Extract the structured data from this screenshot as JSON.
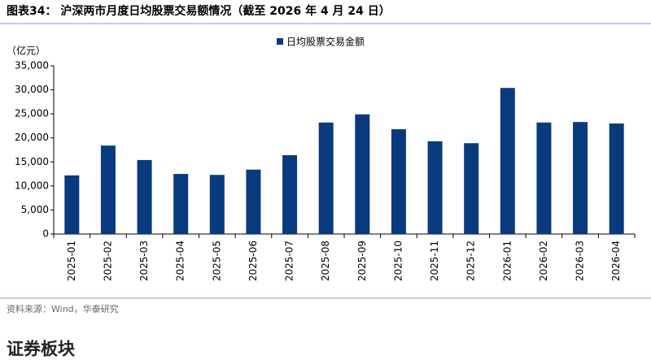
{
  "chart_data": {
    "type": "bar",
    "title": "图表34：  沪深两市月度日均股票交易额情况（截至 2026 年 4 月 24 日）",
    "y_label": "（亿元）",
    "categories": [
      "2025-01",
      "2025-02",
      "2025-03",
      "2025-04",
      "2025-05",
      "2025-06",
      "2025-07",
      "2025-08",
      "2025-09",
      "2025-10",
      "2025-11",
      "2025-12",
      "2026-01",
      "2026-02",
      "2026-03",
      "2026-04"
    ],
    "series": [
      {
        "name": "日均股票交易金额",
        "color": "#0a3a7e",
        "values": [
          12200,
          18400,
          15400,
          12500,
          12300,
          13400,
          16400,
          23200,
          24900,
          21800,
          19300,
          18900,
          30400,
          23200,
          23300,
          23000
        ]
      }
    ],
    "ylim": [
      0,
      35000
    ],
    "yticks": [
      0,
      {
        "value": 5000,
        "label": "5,000"
      },
      {
        "value": 10000,
        "label": "10,000"
      },
      {
        "value": 15000,
        "label": "15,000"
      },
      {
        "value": 20000,
        "label": "20,000"
      },
      {
        "value": 25000,
        "label": "25,000"
      },
      {
        "value": 30000,
        "label": "30,000"
      },
      {
        "value": 35000,
        "label": "35,000"
      }
    ],
    "grid": false
  },
  "source": "资料来源：Wind，华泰研究",
  "section_heading": "证券板块"
}
